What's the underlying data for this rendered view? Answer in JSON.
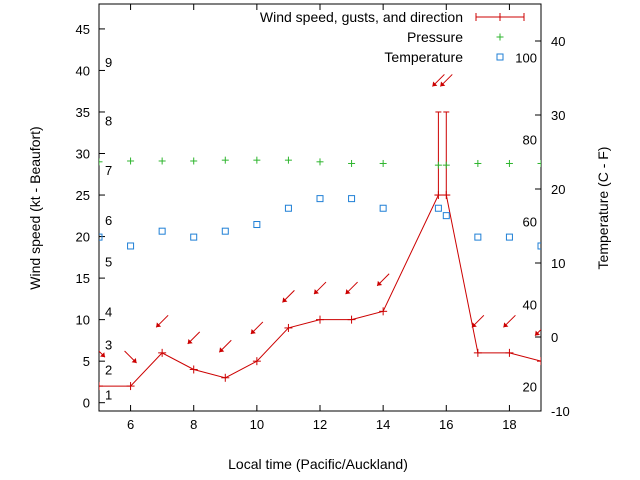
{
  "chart_data": {
    "type": "line",
    "xlabel": "Local time (Pacific/Auckland)",
    "ylabel": "Wind speed (kt - Beaufort)",
    "y2label": "Temperature (C - F)",
    "xlim": [
      5,
      19
    ],
    "ylim": [
      -1,
      48
    ],
    "y2lim": [
      -10,
      45
    ],
    "x_ticks": [
      6,
      8,
      10,
      12,
      14,
      16,
      18
    ],
    "y_ticks": [
      0,
      5,
      10,
      15,
      20,
      25,
      30,
      35,
      40,
      45
    ],
    "y2_ticks": [
      -10,
      0,
      10,
      20,
      30,
      40
    ],
    "beaufort_labels": [
      {
        "text": "1",
        "y": 1
      },
      {
        "text": "2",
        "y": 4
      },
      {
        "text": "3",
        "y": 7
      },
      {
        "text": "4",
        "y": 11
      },
      {
        "text": "5",
        "y": 17
      },
      {
        "text": "6",
        "y": 22
      },
      {
        "text": "7",
        "y": 28
      },
      {
        "text": "8",
        "y": 34
      },
      {
        "text": "9",
        "y": 41
      }
    ],
    "fahrenheit_labels": [
      {
        "text": "20",
        "y2": -6.7
      },
      {
        "text": "40",
        "y2": 4.4
      },
      {
        "text": "60",
        "y2": 15.6
      },
      {
        "text": "80",
        "y2": 26.7
      },
      {
        "text": "100",
        "y2": 37.8
      }
    ],
    "legend": {
      "placement": "top-right",
      "entries": [
        {
          "label": "Wind speed, gusts, and direction",
          "color": "#cc0000",
          "marker": "line-errorbar"
        },
        {
          "label": "Pressure",
          "color": "#2db52d",
          "marker": "plus"
        },
        {
          "label": "Temperature",
          "color": "#1f7fd6",
          "marker": "square"
        }
      ]
    },
    "series": [
      {
        "name": "Wind speed, gusts, and direction",
        "color": "#cc0000",
        "x": [
          5,
          6,
          7,
          8,
          9,
          10,
          11,
          12,
          13,
          14,
          15.75,
          16,
          17,
          18,
          19
        ],
        "values": [
          2,
          2,
          6,
          4,
          3,
          5,
          9,
          10,
          10,
          11,
          25,
          25,
          6,
          6,
          5
        ],
        "gusts": [
          null,
          null,
          null,
          null,
          null,
          null,
          null,
          null,
          null,
          null,
          35,
          35,
          null,
          null,
          null
        ]
      },
      {
        "name": "Pressure",
        "color": "#2db52d",
        "x": [
          5,
          6,
          7,
          8,
          9,
          10,
          11,
          12,
          13,
          14,
          15.75,
          16,
          17,
          18,
          19
        ],
        "values": [
          29,
          29.1,
          29.1,
          29.1,
          29.2,
          29.2,
          29.2,
          29.0,
          28.8,
          28.8,
          28.6,
          28.6,
          28.8,
          28.8,
          28.8
        ]
      },
      {
        "name": "Temperature",
        "color": "#1f7fd6",
        "x": [
          5,
          6,
          7,
          8,
          9,
          10,
          11,
          12,
          13,
          14,
          15.75,
          16,
          17,
          18,
          19
        ],
        "values2": [
          13.5,
          12.3,
          14.3,
          13.5,
          14.3,
          15.2,
          17.4,
          18.7,
          18.7,
          17.4,
          17.4,
          16.4,
          13.5,
          13.5,
          12.3
        ]
      }
    ],
    "wind_direction_arrows": {
      "color": "#cc0000",
      "points": [
        {
          "x": 5,
          "y": 6.2,
          "dir": "se"
        },
        {
          "x": 6,
          "y": 5.5,
          "dir": "se"
        },
        {
          "x": 7,
          "y": 9.8,
          "dir": "sw"
        },
        {
          "x": 8,
          "y": 7.8,
          "dir": "sw"
        },
        {
          "x": 9,
          "y": 6.8,
          "dir": "sw"
        },
        {
          "x": 10,
          "y": 9.0,
          "dir": "sw"
        },
        {
          "x": 11,
          "y": 12.8,
          "dir": "sw"
        },
        {
          "x": 12,
          "y": 13.8,
          "dir": "sw"
        },
        {
          "x": 13,
          "y": 13.8,
          "dir": "sw"
        },
        {
          "x": 14,
          "y": 14.8,
          "dir": "sw"
        },
        {
          "x": 15.75,
          "y": 38.8,
          "dir": "sw"
        },
        {
          "x": 16,
          "y": 38.8,
          "dir": "sw"
        },
        {
          "x": 17,
          "y": 9.8,
          "dir": "sw"
        },
        {
          "x": 18,
          "y": 9.8,
          "dir": "sw"
        },
        {
          "x": 19,
          "y": 8.8,
          "dir": "sw"
        }
      ]
    }
  }
}
